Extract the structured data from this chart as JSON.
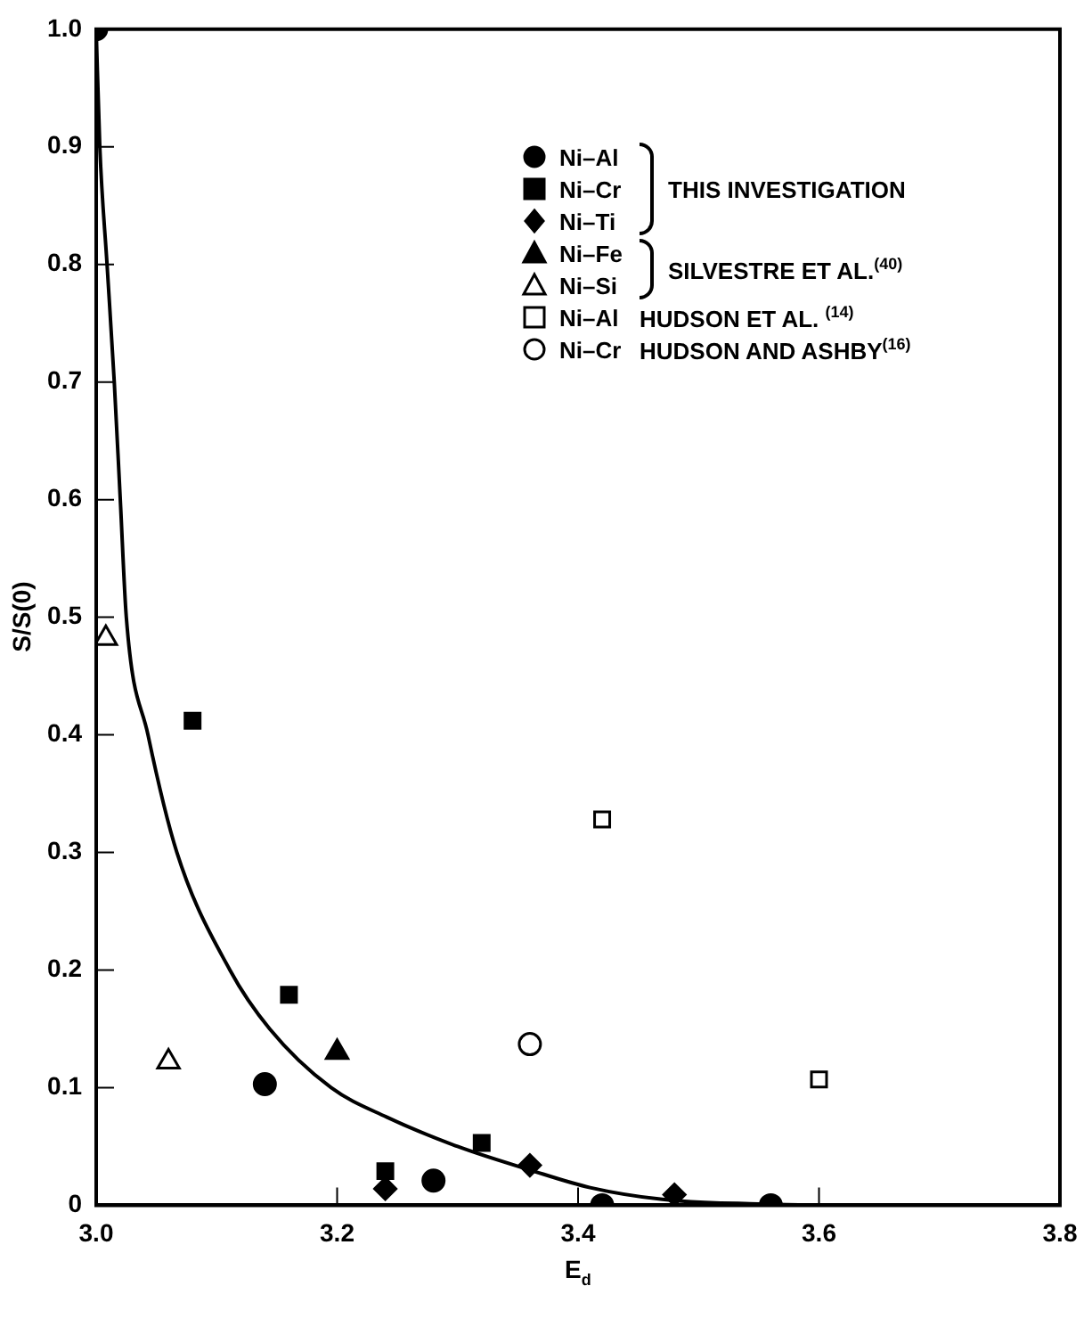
{
  "chart_data": {
    "type": "scatter",
    "xlabel": "E$_{d}$",
    "ylabel": "S/S(0)",
    "xlim": [
      3.0,
      3.8
    ],
    "xticks": [
      {
        "value": 3.0,
        "label": "3.0"
      },
      3.2,
      3.4,
      3.6,
      3.8
    ],
    "ylim": [
      0,
      1
    ],
    "yticks": [
      0,
      0.1,
      0.2,
      0.3,
      0.4,
      0.5,
      0.6,
      0.7,
      0.8,
      0.9,
      {
        "value": 1,
        "label": "1.0"
      }
    ],
    "grid": false,
    "legend": "top right",
    "annotations": [
      "THIS INVESTIGATION",
      "SILVESTRE ET AL.$^{(40)}$",
      "HUDSON ET AL. $^{(14)}$",
      "HUDSON AND ASHBY$^{(16)}$"
    ],
    "series": [
      {
        "name": "Ni–Al",
        "color": "#000000",
        "marker": "circle",
        "x": [
          3.0,
          3.14,
          3.28,
          3.42,
          3.56
        ],
        "values": [
          1.0,
          0.103,
          0.021,
          0.0,
          0.0
        ]
      },
      {
        "name": "Ni–Cr",
        "color": "#000000",
        "marker": "square",
        "x": [
          3.08,
          3.16,
          3.24,
          3.32
        ],
        "values": [
          0.412,
          0.179,
          0.029,
          0.053
        ]
      },
      {
        "name": "Ni–Ti",
        "color": "#000000",
        "marker": "diamond",
        "x": [
          3.24,
          3.36,
          3.48
        ],
        "values": [
          0.014,
          0.034,
          0.009
        ]
      },
      {
        "name": "Ni–Fe",
        "color": "#000000",
        "marker": "triangle",
        "x": [
          3.2
        ],
        "values": [
          0.13
        ]
      },
      {
        "name": "Ni–Si",
        "color": "#ffffff",
        "marker": "triangle",
        "x": [
          3.008,
          3.06
        ],
        "values": [
          0.482,
          0.122
        ]
      },
      {
        "name": "Ni–Al",
        "color": "#ffffff",
        "marker": "square",
        "x": [
          3.42,
          3.6
        ],
        "values": [
          0.328,
          0.107
        ]
      },
      {
        "name": "Ni–Cr",
        "color": "#ffffff",
        "marker": "circle",
        "x": [
          3.36
        ],
        "values": [
          0.137
        ]
      },
      {
        "type": "line",
        "color": "#000000",
        "marker": "none",
        "x": [
          3.0,
          3.003,
          3.009,
          3.015,
          3.02,
          3.025,
          3.043,
          3.067,
          3.111,
          3.144,
          3.195,
          3.241,
          3.3,
          3.36,
          3.41,
          3.47,
          3.55,
          3.6
        ],
        "values": [
          1.0,
          0.9,
          0.8,
          0.7,
          0.6,
          0.5,
          0.4,
          0.3,
          0.2,
          0.15,
          0.1,
          0.075,
          0.05,
          0.03,
          0.015,
          0.005,
          0.001,
          0.0
        ]
      }
    ]
  }
}
